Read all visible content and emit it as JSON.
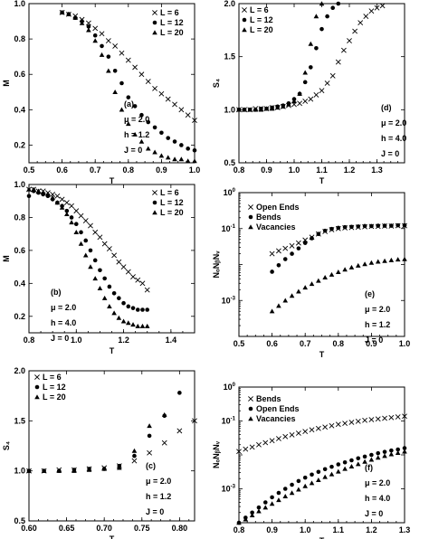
{
  "chart_data": [
    {
      "id": "a",
      "type": "scatter",
      "xlabel": "T",
      "ylabel": "M",
      "xlim": [
        0.5,
        1.0
      ],
      "ylim": [
        0.1,
        1.0
      ],
      "xticks": [
        "0.5",
        "0.6",
        "0.7",
        "0.8",
        "0.9",
        "1.0"
      ],
      "yticks": [
        "0.2",
        "0.4",
        "0.6",
        "0.8",
        "1.0"
      ],
      "legend_position": "top-right",
      "series": [
        {
          "name": "L = 6",
          "marker": "x",
          "x": [
            0.6,
            0.62,
            0.64,
            0.66,
            0.68,
            0.7,
            0.72,
            0.74,
            0.76,
            0.78,
            0.8,
            0.82,
            0.84,
            0.86,
            0.88,
            0.9,
            0.92,
            0.94,
            0.96,
            0.98,
            1.0
          ],
          "y": [
            0.95,
            0.94,
            0.93,
            0.91,
            0.89,
            0.86,
            0.83,
            0.79,
            0.76,
            0.72,
            0.68,
            0.64,
            0.6,
            0.56,
            0.52,
            0.49,
            0.46,
            0.43,
            0.4,
            0.37,
            0.34
          ]
        },
        {
          "name": "L = 12",
          "marker": "circle",
          "x": [
            0.6,
            0.62,
            0.64,
            0.66,
            0.68,
            0.7,
            0.72,
            0.74,
            0.76,
            0.78,
            0.8,
            0.82,
            0.84,
            0.86,
            0.88,
            0.9,
            0.92,
            0.94,
            0.96,
            0.98,
            1.0
          ],
          "y": [
            0.95,
            0.94,
            0.92,
            0.9,
            0.87,
            0.82,
            0.76,
            0.7,
            0.62,
            0.55,
            0.47,
            0.42,
            0.37,
            0.33,
            0.3,
            0.27,
            0.24,
            0.22,
            0.2,
            0.18,
            0.17
          ]
        },
        {
          "name": "L = 20",
          "marker": "triangle",
          "x": [
            0.6,
            0.62,
            0.64,
            0.66,
            0.68,
            0.7,
            0.72,
            0.74,
            0.76,
            0.78,
            0.8,
            0.82,
            0.84,
            0.86,
            0.88,
            0.9,
            0.92,
            0.94,
            0.96,
            0.98,
            1.0
          ],
          "y": [
            0.95,
            0.94,
            0.92,
            0.89,
            0.85,
            0.79,
            0.71,
            0.62,
            0.5,
            0.4,
            0.32,
            0.26,
            0.22,
            0.18,
            0.16,
            0.14,
            0.13,
            0.12,
            0.12,
            0.11,
            0.11
          ]
        }
      ],
      "annotations": [
        "(a)",
        "μ = 2.0",
        "h = 1.2",
        "J = 0"
      ]
    },
    {
      "id": "d",
      "type": "scatter",
      "xlabel": "T",
      "ylabel": "S₄",
      "xlim": [
        0.8,
        1.4
      ],
      "ylim": [
        0.5,
        2.0
      ],
      "xticks": [
        "0.8",
        "0.9",
        "1.0",
        "1.1",
        "1.2",
        "1.3"
      ],
      "yticks": [
        "0.5",
        "1.0",
        "1.5",
        "2.0"
      ],
      "legend_position": "top-left",
      "series": [
        {
          "name": "L = 6",
          "marker": "x",
          "x": [
            0.8,
            0.82,
            0.84,
            0.86,
            0.88,
            0.9,
            0.92,
            0.94,
            0.96,
            0.98,
            1.0,
            1.02,
            1.04,
            1.06,
            1.08,
            1.1,
            1.12,
            1.14,
            1.16,
            1.18,
            1.2,
            1.22,
            1.24,
            1.26,
            1.28,
            1.3,
            1.32
          ],
          "y": [
            1.0,
            1.0,
            1.0,
            1.01,
            1.01,
            1.01,
            1.02,
            1.02,
            1.03,
            1.04,
            1.05,
            1.06,
            1.08,
            1.1,
            1.14,
            1.18,
            1.25,
            1.32,
            1.45,
            1.56,
            1.65,
            1.74,
            1.82,
            1.88,
            1.93,
            1.96,
            1.98
          ]
        },
        {
          "name": "L = 12",
          "marker": "circle",
          "x": [
            0.8,
            0.82,
            0.84,
            0.86,
            0.88,
            0.9,
            0.92,
            0.94,
            0.96,
            0.98,
            1.0,
            1.02,
            1.04,
            1.06,
            1.08,
            1.1,
            1.12,
            1.14,
            1.16
          ],
          "y": [
            1.0,
            1.0,
            1.0,
            1.0,
            1.01,
            1.01,
            1.02,
            1.03,
            1.04,
            1.06,
            1.1,
            1.15,
            1.26,
            1.4,
            1.58,
            1.76,
            1.88,
            1.96,
            2.0
          ]
        },
        {
          "name": "L = 20",
          "marker": "triangle",
          "x": [
            0.8,
            0.82,
            0.84,
            0.86,
            0.88,
            0.9,
            0.92,
            0.94,
            0.96,
            0.98,
            1.0,
            1.02,
            1.04,
            1.06,
            1.08,
            1.1
          ],
          "y": [
            1.0,
            1.0,
            1.0,
            1.0,
            1.0,
            1.01,
            1.01,
            1.02,
            1.03,
            1.05,
            1.08,
            1.15,
            1.35,
            1.62,
            1.88,
            2.0
          ]
        }
      ],
      "annotations": [
        "(d)",
        "μ = 2.0",
        "h = 4.0",
        "J = 0"
      ]
    },
    {
      "id": "b",
      "type": "scatter",
      "xlabel": "T",
      "ylabel": "M",
      "xlim": [
        0.8,
        1.5
      ],
      "ylim": [
        0.1,
        1.0
      ],
      "xticks": [
        "0.8",
        "1.0",
        "1.2",
        "1.4"
      ],
      "yticks": [
        "0.2",
        "0.4",
        "0.6",
        "0.8",
        "1.0"
      ],
      "legend_position": "top-right",
      "series": [
        {
          "name": "L = 6",
          "marker": "x",
          "x": [
            0.8,
            0.82,
            0.84,
            0.86,
            0.88,
            0.9,
            0.92,
            0.94,
            0.96,
            0.98,
            1.0,
            1.02,
            1.04,
            1.06,
            1.08,
            1.1,
            1.12,
            1.14,
            1.16,
            1.18,
            1.2,
            1.22,
            1.24,
            1.26,
            1.28,
            1.3
          ],
          "y": [
            0.97,
            0.97,
            0.96,
            0.96,
            0.95,
            0.94,
            0.93,
            0.91,
            0.89,
            0.87,
            0.84,
            0.81,
            0.78,
            0.75,
            0.71,
            0.68,
            0.64,
            0.61,
            0.57,
            0.53,
            0.5,
            0.47,
            0.44,
            0.42,
            0.4,
            0.36
          ]
        },
        {
          "name": "L = 12",
          "marker": "circle",
          "x": [
            0.8,
            0.82,
            0.84,
            0.86,
            0.88,
            0.9,
            0.92,
            0.94,
            0.96,
            0.98,
            1.0,
            1.02,
            1.04,
            1.06,
            1.08,
            1.1,
            1.12,
            1.14,
            1.16,
            1.18,
            1.2,
            1.22,
            1.24,
            1.26,
            1.28,
            1.3
          ],
          "y": [
            0.93,
            0.96,
            0.95,
            0.94,
            0.93,
            0.91,
            0.89,
            0.87,
            0.84,
            0.8,
            0.76,
            0.71,
            0.66,
            0.6,
            0.54,
            0.48,
            0.43,
            0.38,
            0.34,
            0.31,
            0.28,
            0.26,
            0.25,
            0.24,
            0.24,
            0.24
          ]
        },
        {
          "name": "L = 20",
          "marker": "triangle",
          "x": [
            0.8,
            0.82,
            0.84,
            0.86,
            0.88,
            0.9,
            0.92,
            0.94,
            0.96,
            0.98,
            1.0,
            1.02,
            1.04,
            1.06,
            1.08,
            1.1,
            1.12,
            1.14,
            1.16,
            1.18,
            1.2,
            1.22,
            1.24,
            1.26,
            1.28,
            1.3
          ],
          "y": [
            0.97,
            0.97,
            0.96,
            0.95,
            0.94,
            0.92,
            0.89,
            0.86,
            0.82,
            0.77,
            0.71,
            0.64,
            0.57,
            0.5,
            0.43,
            0.37,
            0.31,
            0.26,
            0.22,
            0.19,
            0.17,
            0.16,
            0.15,
            0.14,
            0.14,
            0.14
          ]
        }
      ],
      "annotations": [
        "(b)",
        "μ = 2.0",
        "h = 4.0",
        "J = 0"
      ]
    },
    {
      "id": "e",
      "type": "scatter",
      "xlabel": "T",
      "ylabel": "NₒNᵦNᵥ",
      "log_y": true,
      "xlim": [
        0.5,
        1.0
      ],
      "ylim_exp": [
        -4,
        0
      ],
      "xticks": [
        "0.5",
        "0.6",
        "0.7",
        "0.8",
        "0.9",
        "1.0"
      ],
      "legend_position": "top-left",
      "series": [
        {
          "name": "Open Ends",
          "marker": "x",
          "x": [
            0.6,
            0.62,
            0.64,
            0.66,
            0.68,
            0.7,
            0.72,
            0.74,
            0.76,
            0.78,
            0.8,
            0.82,
            0.84,
            0.86,
            0.88,
            0.9,
            0.92,
            0.94,
            0.96,
            0.98,
            1.0
          ],
          "log10_y": [
            -1.7,
            -1.62,
            -1.55,
            -1.48,
            -1.4,
            -1.32,
            -1.24,
            -1.15,
            -1.08,
            -1.03,
            -1.0,
            -0.98,
            -0.97,
            -0.96,
            -0.95,
            -0.94,
            -0.94,
            -0.93,
            -0.93,
            -0.92,
            -0.92
          ]
        },
        {
          "name": "Bends",
          "marker": "circle",
          "x": [
            0.6,
            0.62,
            0.64,
            0.66,
            0.68,
            0.7,
            0.72,
            0.74,
            0.76,
            0.78,
            0.8,
            0.82,
            0.84,
            0.86,
            0.88,
            0.9,
            0.92,
            0.94,
            0.96,
            0.98,
            1.0
          ],
          "log10_y": [
            -2.2,
            -2.02,
            -1.85,
            -1.7,
            -1.55,
            -1.4,
            -1.27,
            -1.15,
            -1.06,
            -1.01,
            -0.98,
            -0.96,
            -0.95,
            -0.94,
            -0.93,
            -0.93,
            -0.92,
            -0.92,
            -0.92,
            -0.91,
            -0.91
          ]
        },
        {
          "name": "Vacancies",
          "marker": "triangle",
          "x": [
            0.6,
            0.62,
            0.64,
            0.66,
            0.68,
            0.7,
            0.72,
            0.74,
            0.76,
            0.78,
            0.8,
            0.82,
            0.84,
            0.86,
            0.88,
            0.9,
            0.92,
            0.94,
            0.96,
            0.98,
            1.0
          ],
          "log10_y": [
            -3.3,
            -3.15,
            -3.0,
            -2.87,
            -2.75,
            -2.64,
            -2.54,
            -2.45,
            -2.36,
            -2.28,
            -2.21,
            -2.14,
            -2.08,
            -2.03,
            -1.99,
            -1.95,
            -1.92,
            -1.9,
            -1.88,
            -1.86,
            -1.85
          ]
        }
      ],
      "annotations": [
        "(e)",
        "μ = 2.0",
        "h = 1.2",
        "J = 0"
      ]
    },
    {
      "id": "c",
      "type": "scatter",
      "xlabel": "T",
      "ylabel": "S₄",
      "xlim": [
        0.6,
        0.82
      ],
      "ylim": [
        0.5,
        2.0
      ],
      "xticks": [
        "0.60",
        "0.65",
        "0.70",
        "0.75",
        "0.80"
      ],
      "yticks": [
        "0.5",
        "1.0",
        "1.5",
        "2.0"
      ],
      "legend_position": "top-left",
      "series": [
        {
          "name": "L = 6",
          "marker": "x",
          "x": [
            0.6,
            0.62,
            0.64,
            0.66,
            0.68,
            0.7,
            0.72,
            0.74,
            0.76,
            0.78,
            0.8,
            0.82
          ],
          "y": [
            1.0,
            1.0,
            1.01,
            1.01,
            1.02,
            1.03,
            1.05,
            1.1,
            1.18,
            1.28,
            1.4,
            1.5
          ]
        },
        {
          "name": "L = 12",
          "marker": "circle",
          "x": [
            0.6,
            0.62,
            0.64,
            0.66,
            0.68,
            0.7,
            0.72,
            0.74,
            0.76,
            0.78,
            0.8
          ],
          "y": [
            1.0,
            1.0,
            1.0,
            1.01,
            1.02,
            1.02,
            1.05,
            1.15,
            1.35,
            1.55,
            1.78
          ]
        },
        {
          "name": "L = 20",
          "marker": "triangle",
          "x": [
            0.6,
            0.62,
            0.64,
            0.66,
            0.68,
            0.7,
            0.72,
            0.74,
            0.76,
            0.78
          ],
          "y": [
            1.0,
            1.0,
            1.0,
            1.0,
            1.01,
            1.02,
            1.03,
            1.2,
            1.45,
            1.56
          ]
        }
      ],
      "annotations": [
        "(c)",
        "μ = 2.0",
        "h = 1.2",
        "J = 0"
      ]
    },
    {
      "id": "f",
      "type": "scatter",
      "xlabel": "T",
      "ylabel": "NₒNᵦNᵥ",
      "log_y": true,
      "xlim": [
        0.8,
        1.3
      ],
      "ylim_exp": [
        -4,
        0
      ],
      "xticks": [
        "0.8",
        "0.9",
        "1.0",
        "1.1",
        "1.2",
        "1.3"
      ],
      "legend_position": "top-left",
      "series": [
        {
          "name": "Bends",
          "marker": "x",
          "x": [
            0.8,
            0.82,
            0.84,
            0.86,
            0.88,
            0.9,
            0.92,
            0.94,
            0.96,
            0.98,
            1.0,
            1.02,
            1.04,
            1.06,
            1.08,
            1.1,
            1.12,
            1.14,
            1.16,
            1.18,
            1.2,
            1.22,
            1.24,
            1.26,
            1.28,
            1.3
          ],
          "log10_y": [
            -1.9,
            -1.83,
            -1.77,
            -1.7,
            -1.64,
            -1.58,
            -1.52,
            -1.46,
            -1.41,
            -1.36,
            -1.31,
            -1.26,
            -1.22,
            -1.18,
            -1.14,
            -1.1,
            -1.07,
            -1.04,
            -1.01,
            -0.98,
            -0.96,
            -0.94,
            -0.92,
            -0.9,
            -0.88,
            -0.86
          ]
        },
        {
          "name": "Open Ends",
          "marker": "circle",
          "x": [
            0.8,
            0.82,
            0.84,
            0.86,
            0.88,
            0.9,
            0.92,
            0.94,
            0.96,
            0.98,
            1.0,
            1.02,
            1.04,
            1.06,
            1.08,
            1.1,
            1.12,
            1.14,
            1.16,
            1.18,
            1.2,
            1.22,
            1.24,
            1.26,
            1.28,
            1.3
          ],
          "log10_y": [
            -4.0,
            -3.85,
            -3.7,
            -3.55,
            -3.4,
            -3.25,
            -3.12,
            -3.0,
            -2.88,
            -2.77,
            -2.67,
            -2.58,
            -2.5,
            -2.42,
            -2.35,
            -2.28,
            -2.22,
            -2.16,
            -2.1,
            -2.05,
            -2.0,
            -1.95,
            -1.91,
            -1.87,
            -1.84,
            -1.8
          ]
        },
        {
          "name": "Vacancies",
          "marker": "triangle",
          "x": [
            0.8,
            0.82,
            0.84,
            0.86,
            0.88,
            0.9,
            0.92,
            0.94,
            0.96,
            0.98,
            1.0,
            1.02,
            1.04,
            1.06,
            1.08,
            1.1,
            1.12,
            1.14,
            1.16,
            1.18,
            1.2,
            1.22,
            1.24,
            1.26,
            1.28,
            1.3
          ],
          "log10_y": [
            -4.0,
            -3.9,
            -3.78,
            -3.66,
            -3.55,
            -3.44,
            -3.33,
            -3.22,
            -3.12,
            -3.02,
            -2.92,
            -2.83,
            -2.74,
            -2.65,
            -2.57,
            -2.49,
            -2.41,
            -2.34,
            -2.27,
            -2.2,
            -2.14,
            -2.08,
            -2.03,
            -1.98,
            -1.94,
            -1.9
          ]
        }
      ],
      "annotations": [
        "(f)",
        "μ = 2.0",
        "h = 4.0",
        "J = 0"
      ]
    }
  ]
}
